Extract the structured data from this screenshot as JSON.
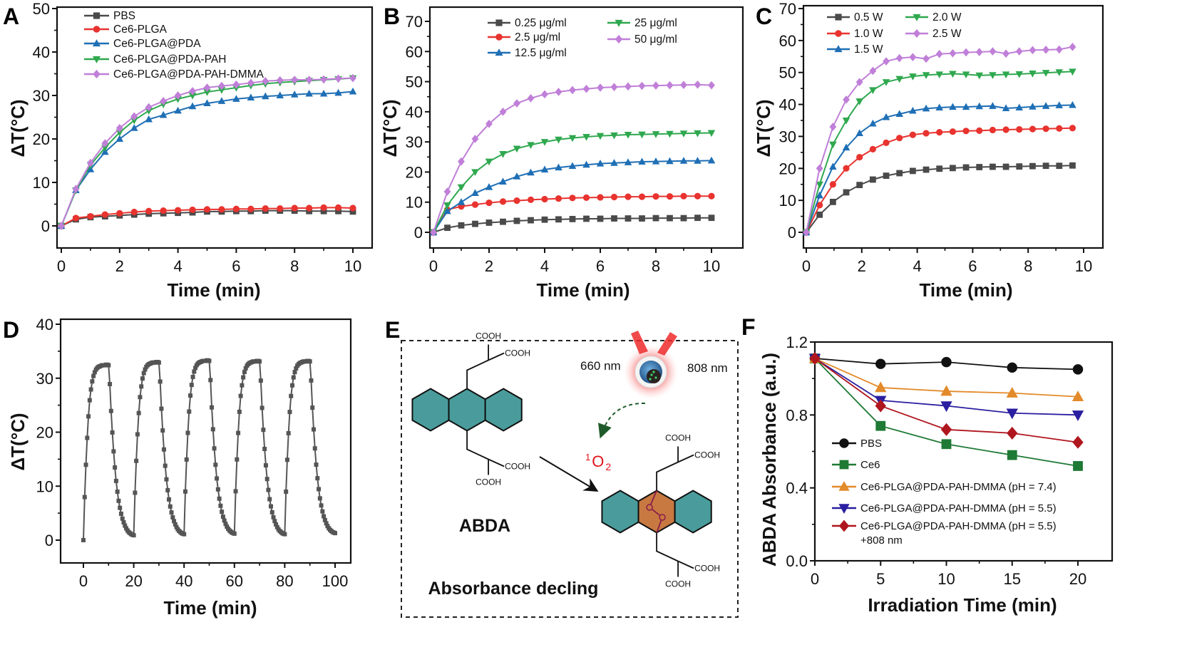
{
  "panel_letters": [
    "A",
    "B",
    "C",
    "D",
    "E",
    "F"
  ],
  "colors": {
    "teal": "#4a9c9c",
    "orange_ring": "#c87941",
    "singlet_oxygen": "#e0141c",
    "peroxide": "#8a1d4a"
  },
  "chart_data": [
    {
      "panel": "A",
      "type": "line",
      "xlabel": "Time (min)",
      "ylabel": "ΔT(°C)",
      "xlim": [
        0,
        10
      ],
      "ylim": [
        -5,
        50
      ],
      "x_tick_labels": [
        "0",
        "2",
        "4",
        "6",
        "8",
        "10"
      ],
      "y_tick_labels": [
        "0",
        "10",
        "20",
        "30",
        "40",
        "50"
      ],
      "legend_position": "top-left",
      "x": [
        0,
        0.5,
        1,
        1.5,
        2,
        2.5,
        3,
        3.5,
        4,
        4.5,
        5,
        5.5,
        6,
        6.5,
        7,
        7.5,
        8,
        8.5,
        9,
        9.5,
        10
      ],
      "series": [
        {
          "name": "PBS",
          "color": "#4a4a4a",
          "marker": "square",
          "values": [
            0,
            1.5,
            2,
            2.2,
            2.4,
            2.6,
            2.8,
            2.9,
            3.0,
            3.1,
            3.3,
            3.3,
            3.4,
            3.4,
            3.5,
            3.5,
            3.5,
            3.4,
            3.4,
            3.4,
            3.3
          ]
        },
        {
          "name": "Ce6-PLGA",
          "color": "#e8332f",
          "marker": "circle",
          "values": [
            0,
            1.8,
            2.2,
            2.6,
            2.9,
            3.2,
            3.4,
            3.5,
            3.6,
            3.7,
            3.8,
            3.8,
            3.9,
            3.9,
            4.0,
            4.0,
            4.1,
            4.1,
            4.2,
            4.2,
            4.1
          ]
        },
        {
          "name": "Ce6-PLGA@PDA",
          "color": "#1f6fb5",
          "marker": "triangle-up",
          "values": [
            0,
            8.2,
            13,
            17,
            20,
            22.5,
            24.5,
            25.5,
            26.5,
            27.5,
            28.2,
            28.7,
            29.2,
            29.5,
            29.8,
            30,
            30.2,
            30.4,
            30.4,
            30.6,
            30.9
          ]
        },
        {
          "name": "Ce6-PLGA@PDA-PAH",
          "color": "#2fa84f",
          "marker": "triangle-down",
          "values": [
            0,
            8.2,
            14,
            18,
            21.5,
            24.3,
            26.5,
            28,
            29.2,
            30,
            30.8,
            31.3,
            31.8,
            32.3,
            32.7,
            33,
            33.2,
            33.4,
            33.6,
            33.8,
            34
          ]
        },
        {
          "name": "Ce6-PLGA@PDA-PAH-DMMA",
          "color": "#c07fd8",
          "marker": "diamond",
          "values": [
            0,
            8.5,
            14.5,
            19,
            22.5,
            25.2,
            27.3,
            28.7,
            30,
            31,
            31.8,
            32.2,
            32.5,
            32.9,
            33.3,
            33.5,
            33.6,
            33.6,
            33.7,
            33.9,
            34
          ]
        }
      ]
    },
    {
      "panel": "B",
      "type": "line",
      "xlabel": "Time (min)",
      "ylabel": "ΔT(°C)",
      "xlim": [
        0,
        10
      ],
      "ylim": [
        -5,
        74
      ],
      "x_tick_labels": [
        "0",
        "2",
        "4",
        "6",
        "8",
        "10"
      ],
      "y_tick_labels": [
        "0",
        "10",
        "20",
        "30",
        "40",
        "50",
        "60",
        "70"
      ],
      "legend_position": "top",
      "x": [
        0,
        0.5,
        1,
        1.5,
        2,
        2.5,
        3,
        3.5,
        4,
        4.5,
        5,
        5.5,
        6,
        6.5,
        7,
        7.5,
        8,
        8.5,
        9,
        9.5,
        10
      ],
      "series": [
        {
          "name": "0.25  μg/ml",
          "color": "#4a4a4a",
          "marker": "square",
          "values": [
            0,
            1.5,
            2.3,
            2.8,
            3.2,
            3.5,
            3.8,
            4.0,
            4.2,
            4.3,
            4.4,
            4.5,
            4.5,
            4.6,
            4.6,
            4.6,
            4.7,
            4.7,
            4.7,
            4.8,
            4.8
          ]
        },
        {
          "name": "2.5  μg/ml",
          "color": "#e8332f",
          "marker": "circle",
          "values": [
            0,
            7.5,
            8.6,
            9.2,
            9.8,
            10.2,
            10.5,
            10.8,
            11,
            11.2,
            11.4,
            11.5,
            11.6,
            11.7,
            11.8,
            11.8,
            11.9,
            11.9,
            12,
            12,
            12
          ]
        },
        {
          "name": "12.5  μg/ml",
          "color": "#1f6fb5",
          "marker": "triangle-up",
          "values": [
            0,
            7,
            10,
            13,
            15,
            16.8,
            18.5,
            19.8,
            20.8,
            21.5,
            22,
            22.4,
            22.8,
            23,
            23.2,
            23.4,
            23.5,
            23.6,
            23.7,
            23.7,
            23.8
          ]
        },
        {
          "name": "25  μg/ml",
          "color": "#2fa84f",
          "marker": "triangle-down",
          "values": [
            0,
            9,
            15,
            20,
            23.5,
            26,
            27.8,
            29,
            30,
            30.8,
            31.3,
            31.7,
            32,
            32.2,
            32.4,
            32.5,
            32.6,
            32.7,
            32.8,
            32.9,
            33
          ]
        },
        {
          "name": "50  μg/ml",
          "color": "#c07fd8",
          "marker": "diamond",
          "values": [
            0,
            13.5,
            23.5,
            31,
            36,
            40,
            42.8,
            44.5,
            45.8,
            46.6,
            47.2,
            47.6,
            48,
            48.2,
            48.4,
            48.6,
            48.7,
            48.8,
            48.9,
            49,
            48.8
          ]
        }
      ]
    },
    {
      "panel": "C",
      "type": "line",
      "xlabel": "Time (min)",
      "ylabel": "ΔT(°C)",
      "xlim": [
        0,
        10
      ],
      "ylim": [
        -5,
        70
      ],
      "x_tick_labels": [
        "0",
        "2",
        "4",
        "6",
        "8",
        "10"
      ],
      "y_tick_labels": [
        "0",
        "10",
        "20",
        "30",
        "40",
        "50",
        "60",
        "70"
      ],
      "legend_position": "top-left",
      "x": [
        0,
        0.48,
        0.96,
        1.44,
        1.92,
        2.4,
        2.88,
        3.36,
        3.84,
        4.32,
        4.8,
        5.28,
        5.76,
        6.24,
        6.72,
        7.2,
        7.68,
        8.16,
        8.64,
        9.12,
        9.6
      ],
      "series": [
        {
          "name": "0.5 W",
          "color": "#4a4a4a",
          "marker": "square",
          "values": [
            0,
            5.5,
            9.5,
            12.5,
            14.8,
            16.5,
            17.7,
            18.5,
            19.2,
            19.6,
            19.9,
            20.1,
            20.3,
            20.4,
            20.5,
            20.5,
            20.6,
            20.7,
            20.8,
            20.8,
            20.9
          ]
        },
        {
          "name": "1.0 W",
          "color": "#e8332f",
          "marker": "circle",
          "values": [
            0,
            8.5,
            15,
            20,
            23.5,
            26,
            28,
            29.5,
            30.5,
            31,
            31.3,
            31.5,
            31.7,
            31.8,
            32,
            32.1,
            32.2,
            32.3,
            32.4,
            32.5,
            32.6
          ]
        },
        {
          "name": "1.5 W",
          "color": "#1f6fb5",
          "marker": "triangle-up",
          "values": [
            0,
            11.5,
            20.5,
            26.5,
            31,
            34,
            36,
            37,
            38,
            38.7,
            39,
            39.2,
            39.2,
            39.4,
            39.5,
            38.8,
            39,
            39.3,
            39.5,
            39.7,
            39.8
          ]
        },
        {
          "name": "2.0 W",
          "color": "#2fa84f",
          "marker": "triangle-down",
          "values": [
            0,
            15,
            27.5,
            35,
            41,
            44.5,
            47,
            48,
            48.8,
            49.2,
            49.4,
            49.6,
            49.4,
            49.1,
            49.2,
            49.4,
            49.5,
            49.7,
            49.9,
            50.1,
            50.3
          ]
        },
        {
          "name": "2.5 W",
          "color": "#c07fd8",
          "marker": "diamond",
          "values": [
            0,
            20,
            33,
            41.5,
            47,
            50.5,
            53.5,
            54.5,
            54.8,
            54.3,
            55.8,
            56,
            56.3,
            56.4,
            56.6,
            55.9,
            56.6,
            57,
            57.1,
            57.2,
            58
          ]
        }
      ]
    },
    {
      "panel": "D",
      "type": "line",
      "xlabel": "Time (min)",
      "ylabel": "ΔT(°C)",
      "xlim": [
        -8,
        104
      ],
      "ylim": [
        -4,
        40
      ],
      "x_tick_labels": [
        "0",
        "20",
        "40",
        "60",
        "80",
        "100"
      ],
      "y_tick_labels": [
        "0",
        "10",
        "20",
        "30",
        "40"
      ],
      "series_color": "#555555",
      "cycle_length_min": 20,
      "sample_step_min": 0.5,
      "cycle_profile": [
        0,
        8,
        14,
        19,
        23,
        26,
        28,
        29.5,
        30.5,
        31.2,
        31.7,
        32,
        32.2,
        32.3,
        32.4,
        32.5,
        32.5,
        32.5,
        32.6,
        32.6,
        32.5,
        29,
        24,
        20,
        16.5,
        13.5,
        11,
        9,
        7.3,
        6,
        4.9,
        4,
        3.3,
        2.7,
        2.2,
        1.8,
        1.5,
        1.3,
        1.1,
        1,
        0.9
      ],
      "cycle_peaks": [
        32.5,
        33.0,
        33.3,
        33.2,
        33.2
      ],
      "cycle_ends": [
        0.9,
        1.1,
        1.2,
        1.1,
        1.3
      ]
    },
    {
      "panel": "F",
      "type": "line",
      "xlabel": "Irradiation Time (min)",
      "ylabel": "ABDA Absorbance (a.u.)",
      "xlim": [
        0,
        20
      ],
      "ylim": [
        0,
        1.2
      ],
      "x_tick_labels": [
        "0",
        "5",
        "10",
        "15",
        "20"
      ],
      "y_tick_labels": [
        "0.0",
        "0.4",
        "0.8",
        "1.2"
      ],
      "legend_position": "bottom-left",
      "x": [
        0,
        5,
        10,
        15,
        20
      ],
      "series": [
        {
          "name": "PBS",
          "color": "#111111",
          "marker": "circle",
          "values": [
            1.11,
            1.08,
            1.09,
            1.06,
            1.05
          ]
        },
        {
          "name": "Ce6",
          "color": "#1e7a34",
          "marker": "square",
          "values": [
            1.11,
            0.74,
            0.64,
            0.58,
            0.52
          ]
        },
        {
          "name": "Ce6-PLGA@PDA-PAH-DMMA (pH = 7.4)",
          "color": "#e38a2a",
          "marker": "triangle-up",
          "values": [
            1.11,
            0.95,
            0.93,
            0.92,
            0.9
          ]
        },
        {
          "name": "Ce6-PLGA@PDA-PAH-DMMA (pH = 5.5)",
          "color": "#2a1fa0",
          "marker": "triangle-down",
          "values": [
            1.11,
            0.88,
            0.85,
            0.81,
            0.8
          ]
        },
        {
          "name": "Ce6-PLGA@PDA-PAH-DMMA (pH = 5.5)",
          "name_line2": "+808 nm",
          "color": "#b0161e",
          "marker": "diamond",
          "values": [
            1.11,
            0.85,
            0.72,
            0.7,
            0.65
          ]
        }
      ]
    }
  ],
  "diagram_e": {
    "cooh": "COOH",
    "laser_660": "660 nm",
    "laser_808": "808 nm",
    "singlet_oxygen_sup": "1",
    "singlet_oxygen_main": "O",
    "singlet_oxygen_sub": "2",
    "molecule_name": "ABDA",
    "caption": "Absorbance decling",
    "peroxide_atom": "O"
  }
}
